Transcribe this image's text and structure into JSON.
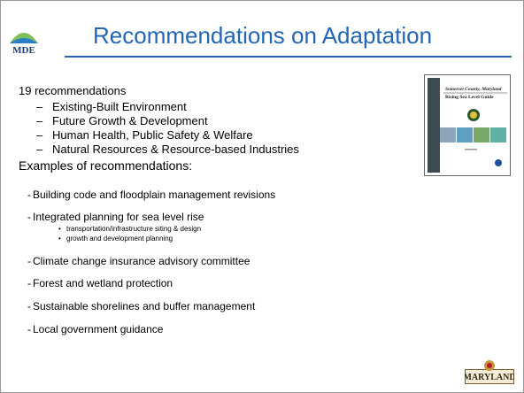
{
  "header": {
    "logo": "MDE",
    "title": "Recommendations on Adaptation"
  },
  "intro": "19 recommendations",
  "areas": [
    "Existing-Built Environment",
    "Future Growth & Development",
    "Human Health, Public Safety & Welfare",
    "Natural Resources & Resource-based Industries"
  ],
  "examples_heading": "Examples of recommendations:",
  "examples": [
    {
      "text": "Building code and floodplain management revisions"
    },
    {
      "text": "Integrated planning for sea level rise",
      "subitems": [
        "transportation/infrastructure siting & design",
        "growth and development planning"
      ]
    },
    {
      "text": "Climate change insurance advisory committee"
    },
    {
      "text": "Forest and wetland protection"
    },
    {
      "text": "Sustainable shorelines and buffer management"
    },
    {
      "text": "Local government guidance"
    }
  ],
  "cover": {
    "county": "Somerset County, Maryland",
    "title": "Rising Sea Level Guide"
  },
  "footer_logo": "MARYLAND"
}
